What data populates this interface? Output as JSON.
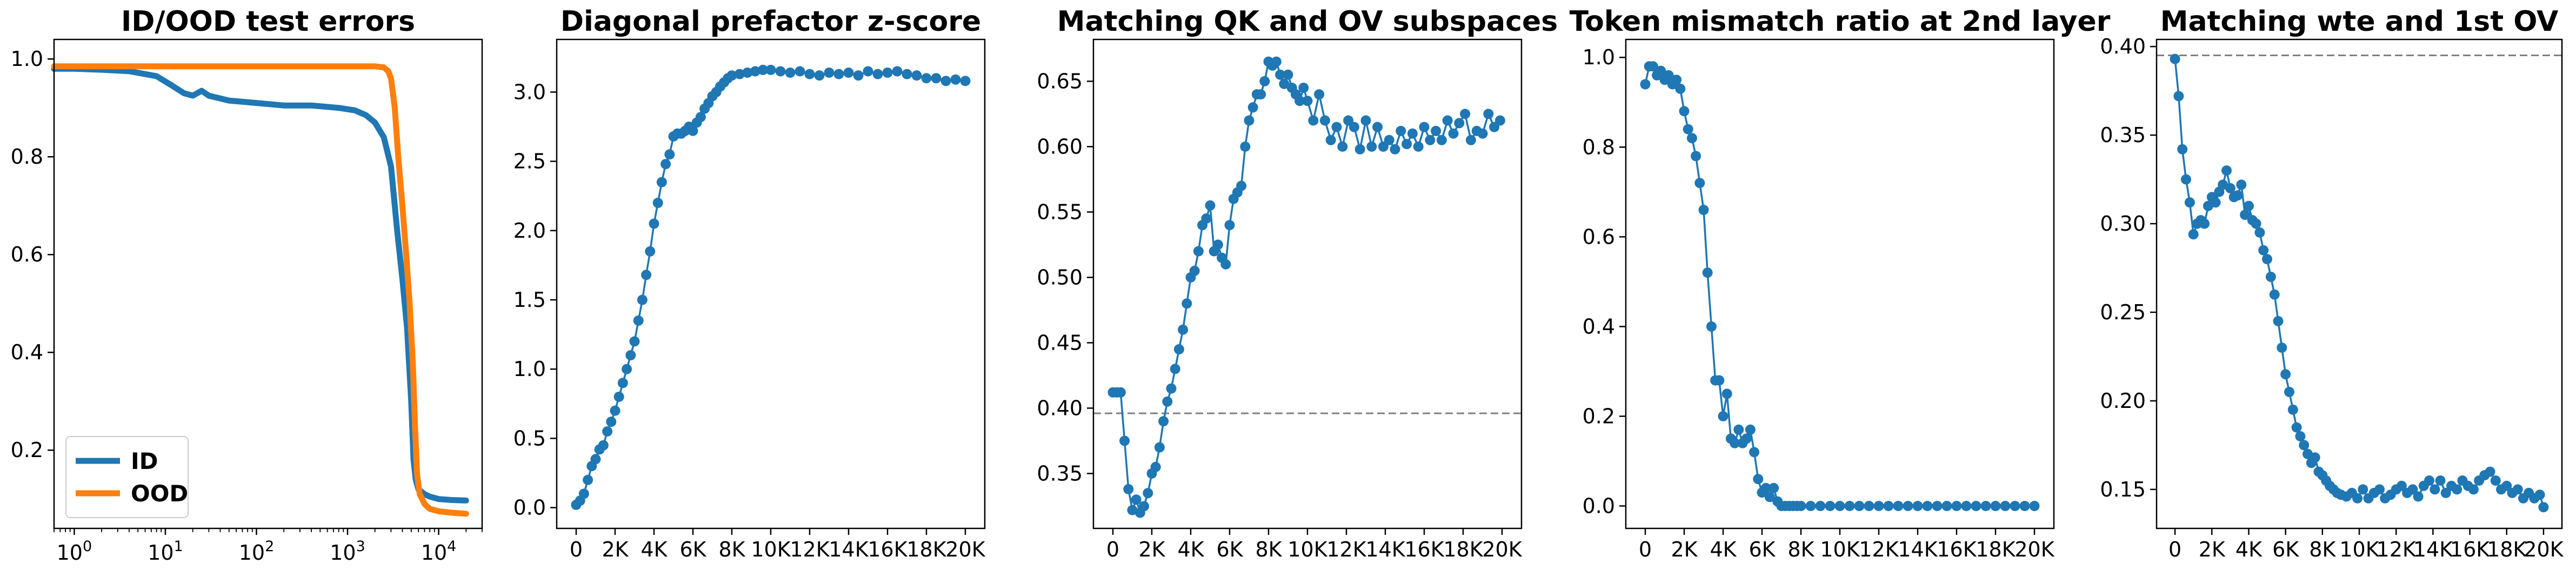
{
  "chart_data": [
    {
      "type": "line",
      "title": "ID/OOD test errors",
      "xscale": "log",
      "xlim": [
        0.6,
        30000
      ],
      "ylim": [
        0.04,
        1.04
      ],
      "xticks": [
        1,
        10,
        100,
        1000,
        10000
      ],
      "xtick_labels": [
        {
          "base": "10",
          "exp": "0"
        },
        {
          "base": "10",
          "exp": "1"
        },
        {
          "base": "10",
          "exp": "2"
        },
        {
          "base": "10",
          "exp": "3"
        },
        {
          "base": "10",
          "exp": "4"
        }
      ],
      "yticks": [
        0.2,
        0.4,
        0.6,
        0.8,
        1.0
      ],
      "ytick_labels": [
        "0.2",
        "0.4",
        "0.6",
        "0.8",
        "1.0"
      ],
      "legend": "lower-left",
      "series": [
        {
          "name": "ID",
          "color": "#1f77b4",
          "x": [
            0.6,
            1,
            2,
            4,
            8,
            12,
            16,
            20,
            25,
            30,
            50,
            100,
            200,
            400,
            800,
            1200,
            1600,
            2000,
            2500,
            3000,
            3500,
            4000,
            4500,
            5000,
            5300,
            5600,
            6000,
            7000,
            8000,
            10000,
            14000,
            20000
          ],
          "y": [
            0.98,
            0.98,
            0.978,
            0.975,
            0.965,
            0.945,
            0.93,
            0.925,
            0.935,
            0.925,
            0.915,
            0.91,
            0.905,
            0.905,
            0.9,
            0.895,
            0.885,
            0.87,
            0.84,
            0.78,
            0.65,
            0.55,
            0.45,
            0.3,
            0.18,
            0.14,
            0.12,
            0.11,
            0.105,
            0.1,
            0.098,
            0.097
          ]
        },
        {
          "name": "OOD",
          "color": "#ff7f0e",
          "x": [
            0.6,
            1,
            10,
            100,
            1000,
            2000,
            2500,
            2800,
            3000,
            3300,
            3600,
            4000,
            4400,
            4800,
            5200,
            5500,
            5800,
            6200,
            7000,
            8000,
            10000,
            14000,
            20000
          ],
          "y": [
            0.985,
            0.985,
            0.985,
            0.985,
            0.985,
            0.985,
            0.983,
            0.975,
            0.96,
            0.9,
            0.8,
            0.7,
            0.6,
            0.5,
            0.38,
            0.25,
            0.15,
            0.11,
            0.09,
            0.08,
            0.075,
            0.072,
            0.07
          ]
        }
      ]
    },
    {
      "type": "line",
      "title": "Diagonal prefactor z-score",
      "xlim": [
        -1000,
        21000
      ],
      "ylim": [
        -0.15,
        3.38
      ],
      "xticks": [
        0,
        2000,
        4000,
        6000,
        8000,
        10000,
        12000,
        14000,
        16000,
        18000,
        20000
      ],
      "xtick_labels": [
        "0",
        "2K",
        "4K",
        "6K",
        "8K",
        "10K",
        "12K",
        "14K",
        "16K",
        "18K",
        "20K"
      ],
      "yticks": [
        0.0,
        0.5,
        1.0,
        1.5,
        2.0,
        2.5,
        3.0
      ],
      "ytick_labels": [
        "0.0",
        "0.5",
        "1.0",
        "1.5",
        "2.0",
        "2.5",
        "3.0"
      ],
      "markers": true,
      "series": [
        {
          "color": "#1f77b4",
          "x": [
            0,
            200,
            400,
            600,
            800,
            1000,
            1200,
            1400,
            1600,
            1800,
            2000,
            2200,
            2400,
            2600,
            2800,
            3000,
            3200,
            3400,
            3600,
            3800,
            4000,
            4200,
            4400,
            4600,
            4800,
            5000,
            5200,
            5400,
            5600,
            5800,
            6000,
            6200,
            6400,
            6600,
            6800,
            7000,
            7200,
            7400,
            7600,
            7800,
            8000,
            8400,
            8800,
            9200,
            9600,
            10000,
            10500,
            11000,
            11500,
            12000,
            12500,
            13000,
            13500,
            14000,
            14500,
            15000,
            15500,
            16000,
            16500,
            17000,
            17500,
            18000,
            18500,
            19000,
            19500,
            20000
          ],
          "y": [
            0.02,
            0.05,
            0.1,
            0.2,
            0.3,
            0.35,
            0.42,
            0.45,
            0.55,
            0.62,
            0.7,
            0.8,
            0.9,
            1.0,
            1.1,
            1.2,
            1.35,
            1.5,
            1.68,
            1.85,
            2.05,
            2.2,
            2.35,
            2.48,
            2.55,
            2.68,
            2.7,
            2.7,
            2.72,
            2.75,
            2.72,
            2.78,
            2.82,
            2.88,
            2.92,
            2.97,
            3.0,
            3.04,
            3.07,
            3.1,
            3.12,
            3.13,
            3.14,
            3.15,
            3.16,
            3.16,
            3.15,
            3.14,
            3.15,
            3.13,
            3.12,
            3.14,
            3.13,
            3.14,
            3.12,
            3.15,
            3.13,
            3.14,
            3.15,
            3.13,
            3.12,
            3.1,
            3.1,
            3.08,
            3.09,
            3.08
          ]
        }
      ]
    },
    {
      "type": "line",
      "title": "Matching QK and OV subspaces",
      "xlim": [
        -1000,
        21000
      ],
      "ylim": [
        0.308,
        0.682
      ],
      "xticks": [
        0,
        2000,
        4000,
        6000,
        8000,
        10000,
        12000,
        14000,
        16000,
        18000,
        20000
      ],
      "xtick_labels": [
        "0",
        "2K",
        "4K",
        "6K",
        "8K",
        "10K",
        "12K",
        "14K",
        "16K",
        "18K",
        "20K"
      ],
      "yticks": [
        0.35,
        0.4,
        0.45,
        0.5,
        0.55,
        0.6,
        0.65
      ],
      "ytick_labels": [
        "0.35",
        "0.40",
        "0.45",
        "0.50",
        "0.55",
        "0.60",
        "0.65"
      ],
      "markers": true,
      "hline": 0.396,
      "series": [
        {
          "color": "#1f77b4",
          "x": [
            0,
            200,
            400,
            600,
            800,
            1000,
            1200,
            1400,
            1600,
            1800,
            2000,
            2200,
            2400,
            2600,
            2800,
            3000,
            3200,
            3400,
            3600,
            3800,
            4000,
            4200,
            4400,
            4600,
            4800,
            5000,
            5200,
            5400,
            5600,
            5800,
            6000,
            6200,
            6400,
            6600,
            6800,
            7000,
            7200,
            7400,
            7600,
            7800,
            8000,
            8200,
            8400,
            8600,
            8800,
            9000,
            9200,
            9400,
            9600,
            9800,
            10000,
            10300,
            10600,
            10900,
            11200,
            11500,
            11800,
            12100,
            12400,
            12700,
            13000,
            13300,
            13600,
            13900,
            14200,
            14500,
            14800,
            15100,
            15400,
            15700,
            16000,
            16300,
            16600,
            16900,
            17200,
            17500,
            17800,
            18100,
            18400,
            18700,
            19000,
            19300,
            19600,
            19900
          ],
          "y": [
            0.412,
            0.412,
            0.412,
            0.375,
            0.338,
            0.322,
            0.33,
            0.32,
            0.325,
            0.335,
            0.35,
            0.355,
            0.37,
            0.39,
            0.405,
            0.415,
            0.43,
            0.445,
            0.46,
            0.48,
            0.5,
            0.505,
            0.52,
            0.54,
            0.545,
            0.555,
            0.52,
            0.525,
            0.515,
            0.51,
            0.54,
            0.56,
            0.565,
            0.57,
            0.6,
            0.62,
            0.63,
            0.64,
            0.64,
            0.65,
            0.665,
            0.662,
            0.665,
            0.655,
            0.648,
            0.655,
            0.645,
            0.64,
            0.635,
            0.645,
            0.635,
            0.62,
            0.64,
            0.62,
            0.605,
            0.615,
            0.6,
            0.62,
            0.615,
            0.598,
            0.62,
            0.6,
            0.615,
            0.6,
            0.605,
            0.598,
            0.612,
            0.602,
            0.61,
            0.6,
            0.615,
            0.605,
            0.612,
            0.605,
            0.62,
            0.61,
            0.618,
            0.625,
            0.605,
            0.612,
            0.61,
            0.625,
            0.615,
            0.62
          ]
        }
      ]
    },
    {
      "type": "line",
      "title": "Token mismatch ratio at 2nd layer",
      "xlim": [
        -1000,
        21000
      ],
      "ylim": [
        -0.05,
        1.04
      ],
      "xticks": [
        0,
        2000,
        4000,
        6000,
        8000,
        10000,
        12000,
        14000,
        16000,
        18000,
        20000
      ],
      "xtick_labels": [
        "0",
        "2K",
        "4K",
        "6K",
        "8K",
        "10K",
        "12K",
        "14K",
        "16K",
        "18K",
        "20K"
      ],
      "yticks": [
        0.0,
        0.2,
        0.4,
        0.6,
        0.8,
        1.0
      ],
      "ytick_labels": [
        "0.0",
        "0.2",
        "0.4",
        "0.6",
        "0.8",
        "1.0"
      ],
      "markers": true,
      "series": [
        {
          "color": "#1f77b4",
          "x": [
            0,
            200,
            400,
            600,
            800,
            1000,
            1200,
            1400,
            1600,
            1800,
            2000,
            2200,
            2400,
            2600,
            2800,
            3000,
            3200,
            3400,
            3600,
            3800,
            4000,
            4200,
            4400,
            4600,
            4800,
            5000,
            5200,
            5400,
            5600,
            5800,
            6000,
            6200,
            6400,
            6600,
            6800,
            7000,
            7200,
            7400,
            7600,
            7800,
            8000,
            8500,
            9000,
            9500,
            10000,
            10500,
            11000,
            11500,
            12000,
            12500,
            13000,
            13500,
            14000,
            14500,
            15000,
            15500,
            16000,
            16500,
            17000,
            17500,
            18000,
            18500,
            19000,
            19500,
            20000
          ],
          "y": [
            0.94,
            0.98,
            0.98,
            0.96,
            0.97,
            0.95,
            0.96,
            0.94,
            0.95,
            0.93,
            0.88,
            0.84,
            0.82,
            0.78,
            0.72,
            0.66,
            0.52,
            0.4,
            0.28,
            0.28,
            0.2,
            0.25,
            0.15,
            0.14,
            0.17,
            0.14,
            0.15,
            0.17,
            0.12,
            0.06,
            0.03,
            0.04,
            0.02,
            0.04,
            0.01,
            0.0,
            0.0,
            0.0,
            0.0,
            0.0,
            0.0,
            0.0,
            0.0,
            0.0,
            0.0,
            0.0,
            0.0,
            0.0,
            0.0,
            0.0,
            0.0,
            0.0,
            0.0,
            0.0,
            0.0,
            0.0,
            0.0,
            0.0,
            0.0,
            0.0,
            0.0,
            0.0,
            0.0,
            0.0,
            0.0
          ]
        }
      ]
    },
    {
      "type": "line",
      "title": "Matching wte and 1st OV",
      "xlim": [
        -1000,
        21000
      ],
      "ylim": [
        0.128,
        0.404
      ],
      "xticks": [
        0,
        2000,
        4000,
        6000,
        8000,
        10000,
        12000,
        14000,
        16000,
        18000,
        20000
      ],
      "xtick_labels": [
        "0",
        "2K",
        "4K",
        "6K",
        "8K",
        "10K",
        "12K",
        "14K",
        "16K",
        "18K",
        "20K"
      ],
      "yticks": [
        0.15,
        0.2,
        0.25,
        0.3,
        0.35,
        0.4
      ],
      "ytick_labels": [
        "0.15",
        "0.20",
        "0.25",
        "0.30",
        "0.35",
        "0.40"
      ],
      "markers": true,
      "hline": 0.395,
      "series": [
        {
          "color": "#1f77b4",
          "x": [
            0,
            200,
            400,
            600,
            800,
            1000,
            1200,
            1400,
            1600,
            1800,
            2000,
            2200,
            2400,
            2600,
            2800,
            3000,
            3200,
            3400,
            3600,
            3800,
            4000,
            4200,
            4400,
            4600,
            4800,
            5000,
            5200,
            5400,
            5600,
            5800,
            6000,
            6200,
            6400,
            6600,
            6800,
            7000,
            7200,
            7400,
            7600,
            7800,
            8000,
            8200,
            8400,
            8600,
            8800,
            9000,
            9300,
            9600,
            9900,
            10200,
            10500,
            10800,
            11100,
            11400,
            11700,
            12000,
            12300,
            12600,
            12900,
            13200,
            13500,
            13800,
            14100,
            14400,
            14700,
            15000,
            15300,
            15600,
            15900,
            16200,
            16500,
            16800,
            17100,
            17400,
            17700,
            18000,
            18300,
            18600,
            18900,
            19200,
            19500,
            19800,
            20000
          ],
          "y": [
            0.393,
            0.372,
            0.342,
            0.325,
            0.312,
            0.294,
            0.3,
            0.302,
            0.3,
            0.31,
            0.315,
            0.312,
            0.318,
            0.322,
            0.33,
            0.32,
            0.315,
            0.316,
            0.322,
            0.305,
            0.31,
            0.302,
            0.3,
            0.295,
            0.285,
            0.28,
            0.27,
            0.26,
            0.245,
            0.23,
            0.215,
            0.205,
            0.195,
            0.185,
            0.18,
            0.175,
            0.17,
            0.165,
            0.168,
            0.16,
            0.158,
            0.155,
            0.152,
            0.15,
            0.148,
            0.147,
            0.146,
            0.148,
            0.145,
            0.15,
            0.145,
            0.148,
            0.15,
            0.145,
            0.147,
            0.15,
            0.152,
            0.148,
            0.15,
            0.146,
            0.152,
            0.155,
            0.15,
            0.155,
            0.148,
            0.152,
            0.15,
            0.155,
            0.152,
            0.15,
            0.155,
            0.158,
            0.16,
            0.155,
            0.15,
            0.152,
            0.148,
            0.15,
            0.145,
            0.148,
            0.145,
            0.147,
            0.14
          ]
        }
      ]
    }
  ]
}
